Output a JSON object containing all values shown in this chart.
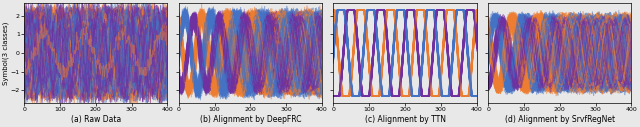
{
  "n_points": 401,
  "n_curves": 80,
  "x_range": [
    0,
    400
  ],
  "y_range": [
    -2.7,
    2.7
  ],
  "yticks": [
    -2,
    -1,
    0,
    1,
    2
  ],
  "xticks": [
    0,
    100,
    200,
    300,
    400
  ],
  "colors": [
    "#4472c4",
    "#ed7d31",
    "#7030a0"
  ],
  "ylabel": "Symbol(3 classes)",
  "titles": [
    "(a) Raw Data",
    "(b) Alignment by DeepFRC",
    "(c) Alignment by TTN",
    "(d) Alignment by SrvfRegNet"
  ],
  "seed": 7,
  "alpha": 0.5,
  "linewidth": 0.55,
  "fig_width": 6.4,
  "fig_height": 1.27,
  "dpi": 100,
  "background_color": "#e8e8e8"
}
